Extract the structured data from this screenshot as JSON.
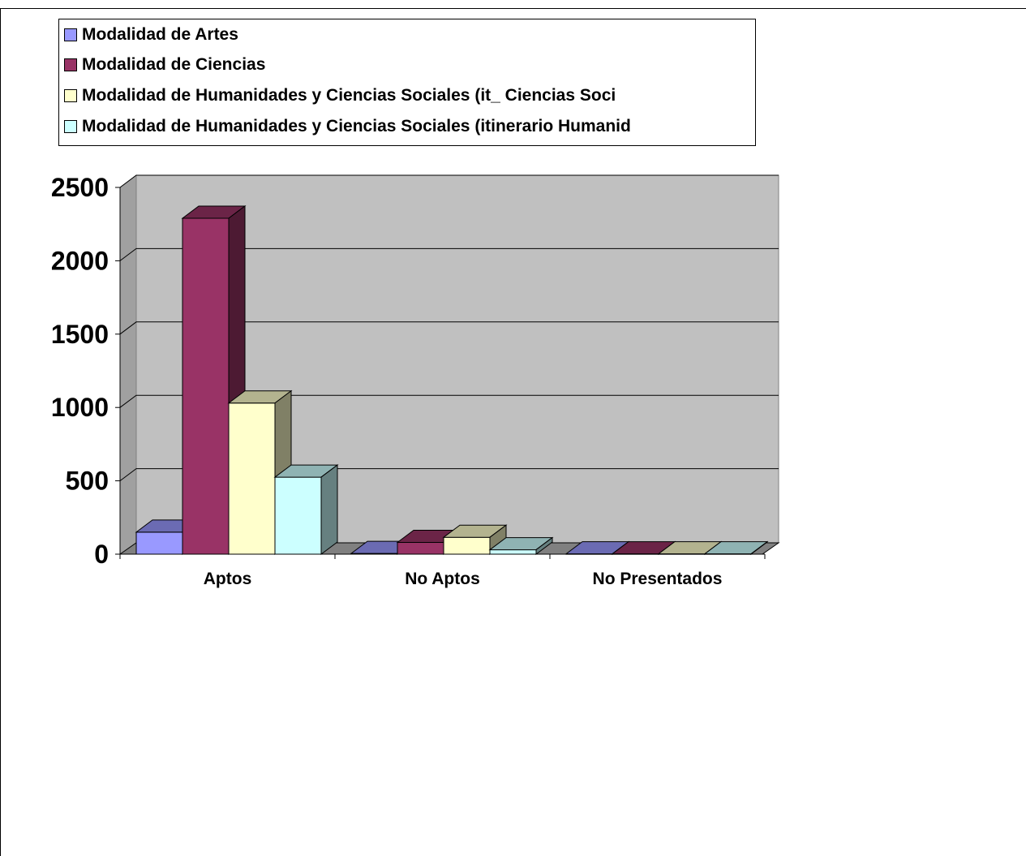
{
  "chart_data": {
    "type": "bar",
    "categories": [
      "Aptos",
      "No Aptos",
      "No Presentados"
    ],
    "series": [
      {
        "name": "Modalidad de Artes",
        "values": [
          150,
          5,
          2
        ],
        "color": "#9999ff",
        "top": "#6b6bb3",
        "side": "#5c5c99"
      },
      {
        "name": "Modalidad de Ciencias",
        "values": [
          2290,
          80,
          2
        ],
        "color": "#993366",
        "top": "#6b2447",
        "side": "#4d1a33"
      },
      {
        "name": "Modalidad de Humanidades y  Ciencias Sociales (it_ Ciencias Soci",
        "values": [
          1030,
          115,
          2
        ],
        "color": "#ffffcc",
        "top": "#b3b38f",
        "side": "#808066"
      },
      {
        "name": "Modalidad de Humanidades y Ciencias Sociales (itinerario Humanid",
        "values": [
          525,
          30,
          2
        ],
        "color": "#ccffff",
        "top": "#8fb3b3",
        "side": "#668080"
      }
    ],
    "yticks": [
      0,
      500,
      1000,
      1500,
      2000,
      2500
    ],
    "ylim": [
      0,
      2500
    ],
    "grid": true,
    "legend": "top",
    "plot_background": "#c0c0c0"
  }
}
